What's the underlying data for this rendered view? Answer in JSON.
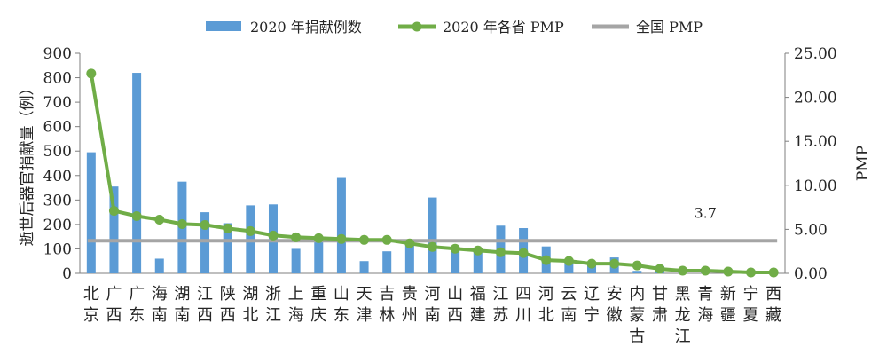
{
  "chart_data": {
    "type": "bar+line",
    "legend": {
      "placement": "top",
      "items": [
        {
          "label": "2020 年捐献例数",
          "kind": "bar",
          "color": "#5b9bd5"
        },
        {
          "label": "2020 年各省 PMP",
          "kind": "line-marker",
          "color": "#70ad47"
        },
        {
          "label": "全国 PMP",
          "kind": "line",
          "color": "#a5a5a5"
        }
      ]
    },
    "categories": [
      [
        "北",
        "京"
      ],
      [
        "广",
        "西"
      ],
      [
        "广",
        "东"
      ],
      [
        "海",
        "南"
      ],
      [
        "湖",
        "南"
      ],
      [
        "江",
        "西"
      ],
      [
        "陕",
        "西"
      ],
      [
        "湖",
        "北"
      ],
      [
        "浙",
        "江"
      ],
      [
        "上",
        "海"
      ],
      [
        "重",
        "庆"
      ],
      [
        "山",
        "东"
      ],
      [
        "天",
        "津"
      ],
      [
        "吉",
        "林"
      ],
      [
        "贵",
        "州"
      ],
      [
        "河",
        "南"
      ],
      [
        "山",
        "西"
      ],
      [
        "福",
        "建"
      ],
      [
        "江",
        "苏"
      ],
      [
        "四",
        "川"
      ],
      [
        "河",
        "北"
      ],
      [
        "云",
        "南"
      ],
      [
        "辽",
        "宁"
      ],
      [
        "安",
        "徽"
      ],
      [
        "内",
        "蒙",
        "古"
      ],
      [
        "甘",
        "肃"
      ],
      [
        "黑",
        "龙",
        "江"
      ],
      [
        "青",
        "海"
      ],
      [
        "新",
        "疆"
      ],
      [
        "宁",
        "夏"
      ],
      [
        "西",
        "藏"
      ]
    ],
    "series": [
      {
        "name": "2020 年捐献例数",
        "axis": "left",
        "color": "#5b9bd5",
        "values": [
          495,
          355,
          820,
          60,
          375,
          250,
          205,
          278,
          282,
          100,
          145,
          390,
          50,
          90,
          130,
          310,
          110,
          100,
          195,
          185,
          110,
          45,
          40,
          65,
          10,
          30,
          15,
          10,
          10,
          10,
          5
        ]
      },
      {
        "name": "2020 年各省 PMP",
        "axis": "right",
        "color": "#70ad47",
        "values": [
          22.7,
          7.1,
          6.5,
          6.1,
          5.6,
          5.5,
          5.1,
          4.8,
          4.3,
          4.1,
          4.0,
          3.9,
          3.8,
          3.8,
          3.4,
          3.0,
          2.8,
          2.6,
          2.4,
          2.3,
          1.5,
          1.4,
          1.1,
          1.1,
          0.9,
          0.5,
          0.3,
          0.3,
          0.2,
          0.1,
          0.1
        ]
      },
      {
        "name": "全国 PMP",
        "axis": "right",
        "color": "#a5a5a5",
        "value": 3.7
      }
    ],
    "y_left": {
      "label": "逝世后器官捐献量（例）",
      "min": 0,
      "max": 900,
      "step": 100,
      "ticks": [
        "0",
        "100",
        "200",
        "300",
        "400",
        "500",
        "600",
        "700",
        "800",
        "900"
      ]
    },
    "y_right": {
      "label": "PMP",
      "min": 0,
      "max": 25,
      "step": 5,
      "ticks": [
        "0.00",
        "5.00",
        "10.00",
        "15.00",
        "20.00",
        "25.00"
      ]
    },
    "annotation": "3.7",
    "grid": false
  }
}
